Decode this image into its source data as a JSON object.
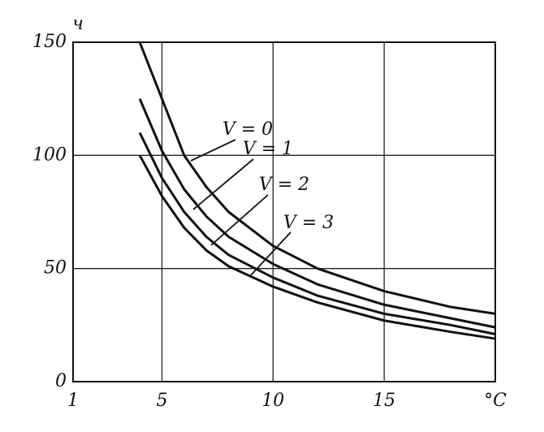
{
  "chart_data": {
    "type": "line",
    "y_label": "ч",
    "x": [
      4,
      5,
      6,
      7,
      8,
      10,
      12,
      15,
      18,
      20
    ],
    "series": [
      {
        "name": "V = 0",
        "color": "#111111",
        "values": [
          150,
          125,
          100,
          86,
          75,
          60,
          50,
          40,
          33,
          30
        ]
      },
      {
        "name": "V = 1",
        "color": "#111111",
        "values": [
          125,
          102,
          85,
          73,
          64,
          52,
          43,
          34,
          28,
          24
        ]
      },
      {
        "name": "V = 2",
        "color": "#111111",
        "values": [
          110,
          90,
          75,
          64,
          56,
          46,
          38,
          30,
          25,
          21
        ]
      },
      {
        "name": "V = 3",
        "color": "#111111",
        "values": [
          100,
          82,
          68,
          58,
          51,
          42,
          35,
          27,
          22,
          19
        ]
      }
    ],
    "xlim": [
      1,
      20
    ],
    "xticks": [
      1,
      5,
      10,
      15,
      {
        "value": 20,
        "label": "°C"
      }
    ],
    "ylim": [
      0,
      150
    ],
    "yticks": [
      0,
      50,
      100,
      150
    ],
    "grid": true
  }
}
